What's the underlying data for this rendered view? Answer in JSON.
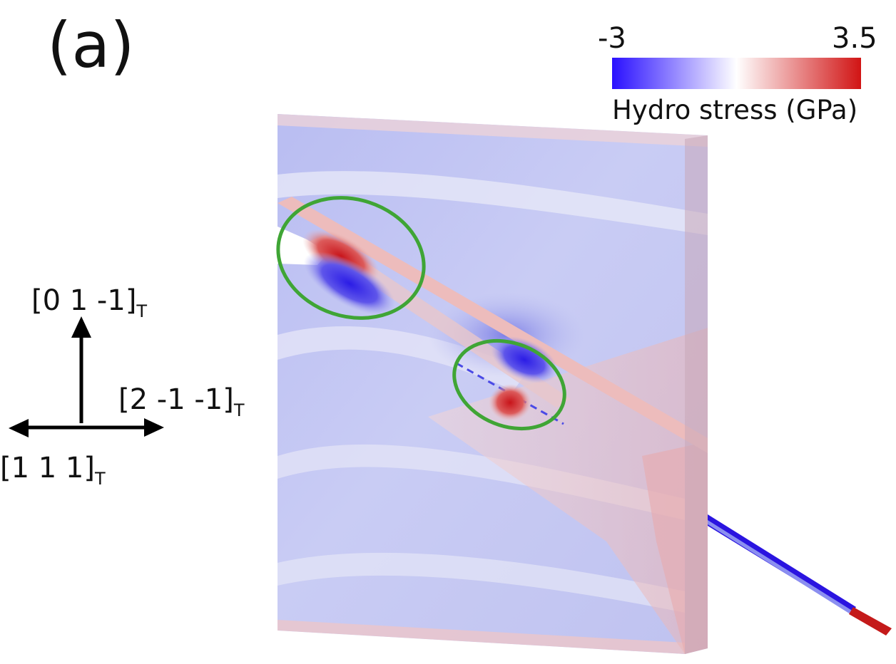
{
  "panel_label": "(a)",
  "colorbar": {
    "min_label": "-3",
    "max_label": "3.5",
    "min_value": -3,
    "max_value": 3.5,
    "title": "Hydro stress (GPa)",
    "colors": [
      "#2a10ff",
      "#ffffff",
      "#d11414"
    ]
  },
  "axes": {
    "up": {
      "text": "[0 1 -1]",
      "sub": "T"
    },
    "right": {
      "text": "[2 -1 -1]",
      "sub": "T"
    },
    "left": {
      "text": "[1 1 1]",
      "sub": "T"
    }
  },
  "highlight_color": "#3fa535",
  "highlight_count": 2
}
